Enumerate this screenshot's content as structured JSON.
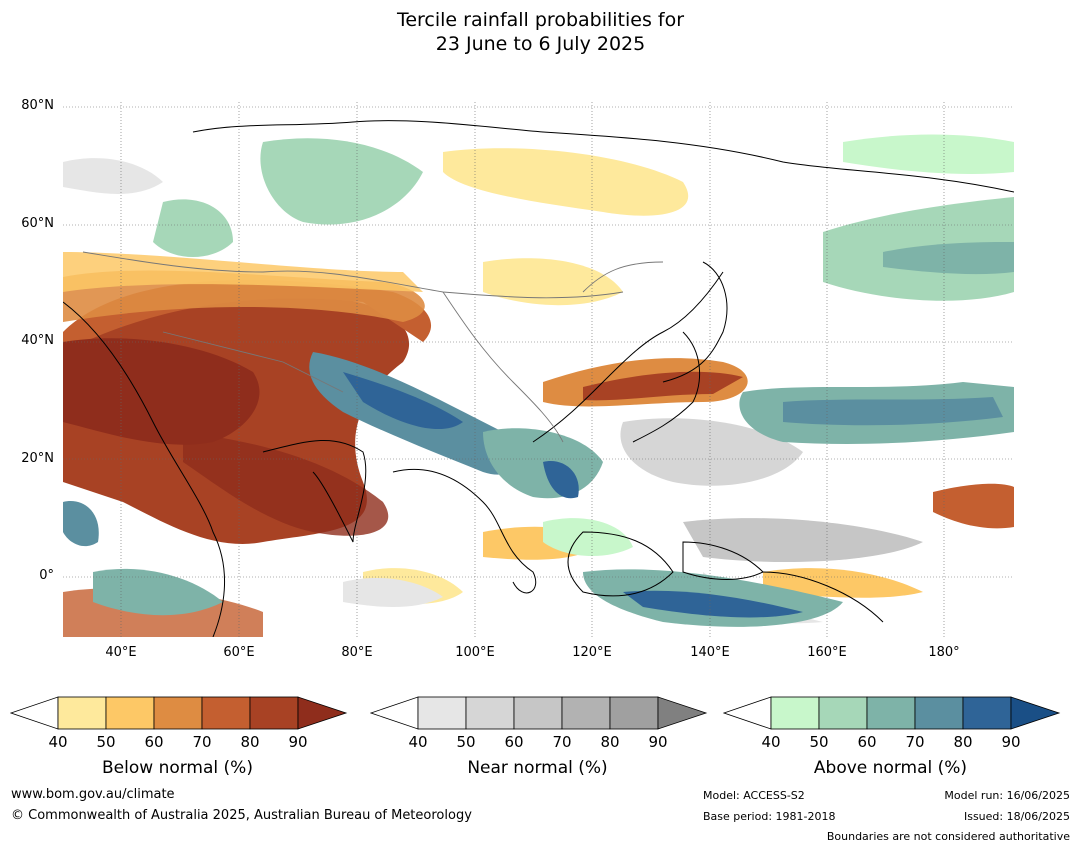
{
  "title_line1": "Tercile rainfall probabilities for",
  "title_line2": "23 June to 6 July 2025",
  "lat_labels": [
    "80°N",
    "60°N",
    "40°N",
    "20°N",
    "0°"
  ],
  "lon_labels": [
    "40°E",
    "60°E",
    "80°E",
    "100°E",
    "120°E",
    "140°E",
    "160°E",
    "180°"
  ],
  "colorbars": [
    {
      "name": "below",
      "title": "Below normal (%)",
      "ticks": [
        "40",
        "50",
        "60",
        "70",
        "80",
        "90"
      ],
      "colors": [
        "#ffffff",
        "#fee99c",
        "#fdc866",
        "#de8c42",
        "#c45f30",
        "#a84224",
        "#8f2d1c"
      ]
    },
    {
      "name": "near",
      "title": "Near normal (%)",
      "ticks": [
        "40",
        "50",
        "60",
        "70",
        "80",
        "90"
      ],
      "colors": [
        "#ffffff",
        "#e6e6e6",
        "#d6d6d6",
        "#c6c6c6",
        "#b2b2b2",
        "#a0a0a0",
        "#808080"
      ]
    },
    {
      "name": "above",
      "title": "Above normal (%)",
      "ticks": [
        "40",
        "50",
        "60",
        "70",
        "80",
        "90"
      ],
      "colors": [
        "#ffffff",
        "#c8f7cb",
        "#a6d7b8",
        "#7eb3a8",
        "#5b8fa0",
        "#2f6497",
        "#1a4f86"
      ]
    }
  ],
  "footer": {
    "url": "www.bom.gov.au/climate",
    "copyright": "© Commonwealth of Australia 2025, Australian Bureau of Meteorology",
    "model": "Model: ACCESS-S2",
    "base_period": "Base period: 1981-2018",
    "model_run": "Model run: 16/06/2025",
    "issued": "Issued: 18/06/2025",
    "disclaimer": "Boundaries are not considered authoritative"
  }
}
